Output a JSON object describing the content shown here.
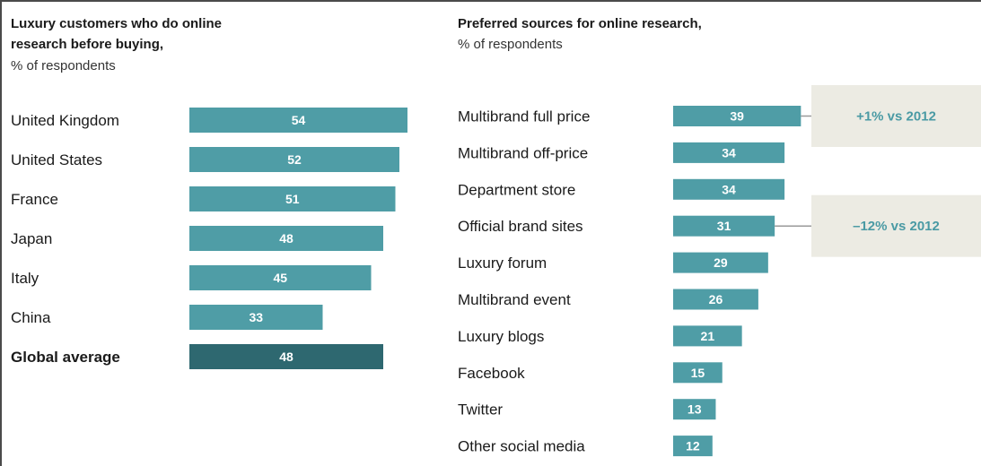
{
  "colors": {
    "bar": "#4f9da6",
    "bar_highlight": "#2e6870",
    "annotation_bg": "#ecebe3",
    "annotation_text": "#4a9aa4",
    "connector": "#9a9a9a"
  },
  "chart_data": [
    {
      "type": "bar",
      "orientation": "horizontal",
      "title": "Luxury customers who do online research before buying,",
      "subtitle": "% of respondents",
      "categories": [
        "United Kingdom",
        "United States",
        "France",
        "Japan",
        "Italy",
        "China",
        "Global average"
      ],
      "values": [
        54,
        52,
        51,
        48,
        45,
        33,
        48
      ],
      "highlight": "Global average"
    },
    {
      "type": "bar",
      "orientation": "horizontal",
      "title": "Preferred sources for online research,",
      "subtitle": "% of respondents",
      "categories": [
        "Multibrand full price",
        "Multibrand off-price",
        "Department store",
        "Official brand sites",
        "Luxury forum",
        "Multibrand event",
        "Luxury blogs",
        "Facebook",
        "Twitter",
        "Other social media"
      ],
      "values": [
        39,
        34,
        34,
        31,
        29,
        26,
        21,
        15,
        13,
        12
      ],
      "annotations": [
        {
          "category": "Multibrand full price",
          "text": "+1% vs 2012"
        },
        {
          "category": "Official brand sites",
          "text": "–12% vs 2012"
        }
      ]
    }
  ]
}
